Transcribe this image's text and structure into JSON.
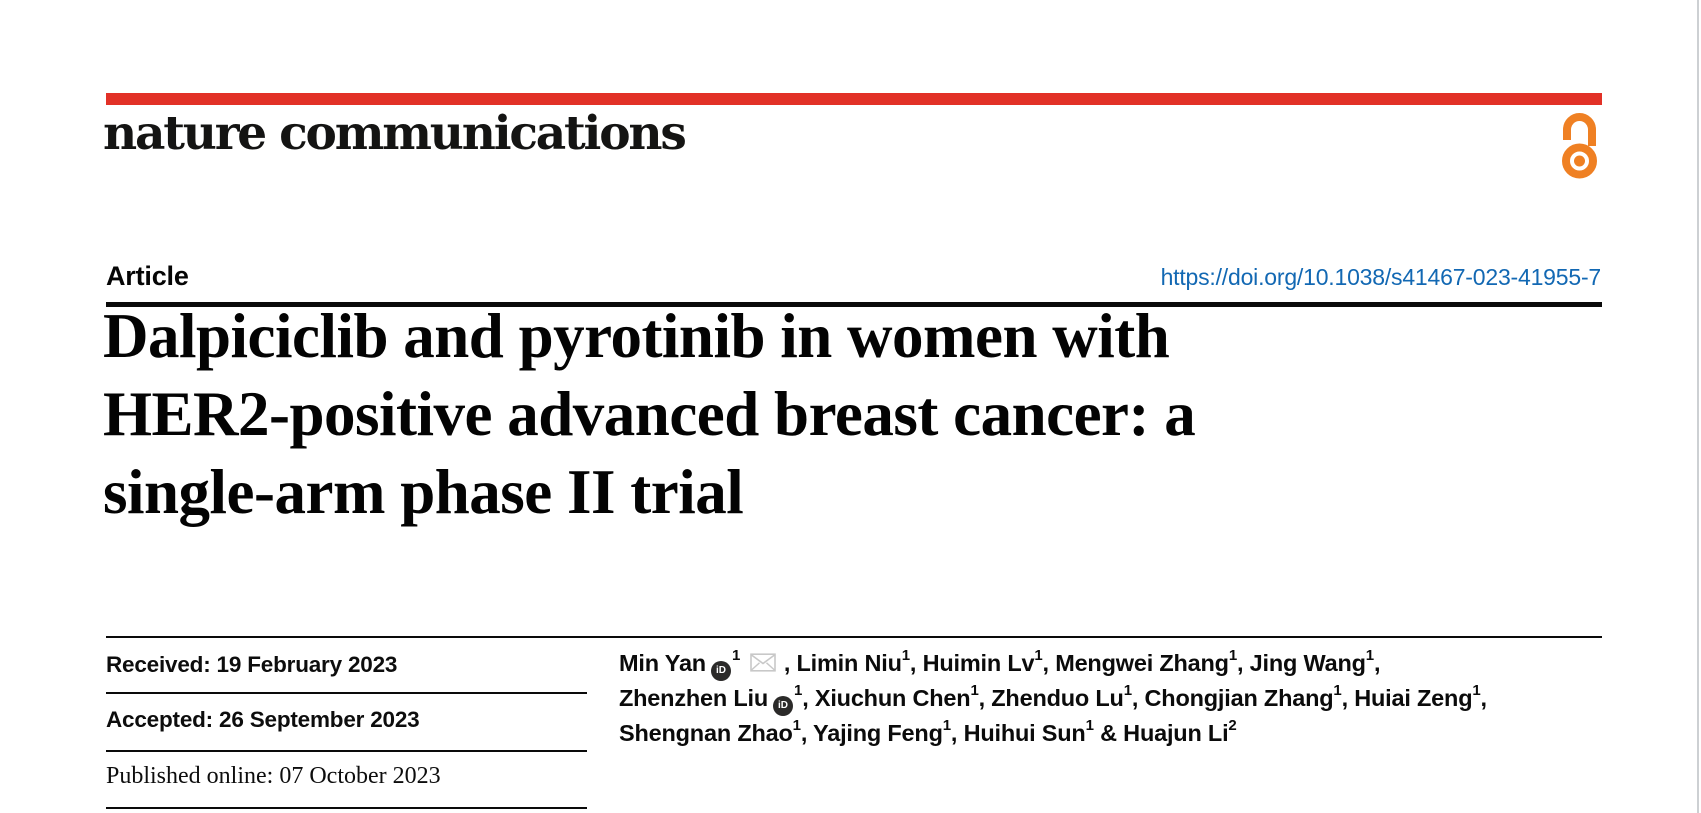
{
  "page": {
    "brand": "nature communications",
    "colors": {
      "accent_red": "#e23127",
      "oa_orange": "#ef8023",
      "link_blue": "#1268b3",
      "rule_black": "#0a0a0a",
      "page_edge_gray": "#cdd0d3",
      "envelope_gray": "#c8c8c8",
      "orcid_black": "#2b2a29"
    },
    "icons": [
      "open-access-padlock-icon",
      "orcid-id-icon",
      "envelope-icon"
    ]
  },
  "header": {
    "article_label": "Article",
    "doi": "https://doi.org/10.1038/s41467-023-41955-7"
  },
  "title": {
    "full": "Dalpiciclib and pyrotinib in women with HER2-positive advanced breast cancer: a single-arm phase II trial",
    "lines": [
      "Dalpiciclib and pyrotinib in women with",
      "HER2-positive advanced breast cancer: a",
      "single-arm phase II trial"
    ]
  },
  "dates": [
    {
      "label": "Received",
      "value": "19 February 2023",
      "text": "Received: 19 February 2023"
    },
    {
      "label": "Accepted",
      "value": "26 September 2023",
      "text": "Accepted: 26 September 2023"
    },
    {
      "label": "Published online",
      "value": "07 October 2023",
      "text": "Published online: 07 October 2023"
    }
  ],
  "authors": {
    "orcid_glyph": "iD",
    "names": [
      "Min Yan",
      "Limin Niu",
      "Huimin Lv",
      "Mengwei Zhang",
      "Jing Wang",
      "Zhenzhen Liu",
      "Xiuchun Chen",
      "Zhenduo Lu",
      "Chongjian Zhang",
      "Huiai Zeng",
      "Shengnan Zhao",
      "Yajing Feng",
      "Huihui Sun",
      "Huajun Li"
    ],
    "lines": [
      [
        {
          "t": "name",
          "v": "Min Yan"
        },
        {
          "t": "orcid"
        },
        {
          "t": "sup",
          "v": "1"
        },
        {
          "t": "mail"
        },
        {
          "t": "text",
          "v": ", "
        },
        {
          "t": "name",
          "v": "Limin Niu"
        },
        {
          "t": "sup",
          "v": "1"
        },
        {
          "t": "text",
          "v": ", "
        },
        {
          "t": "name",
          "v": "Huimin Lv"
        },
        {
          "t": "sup",
          "v": "1"
        },
        {
          "t": "text",
          "v": ", "
        },
        {
          "t": "name",
          "v": "Mengwei Zhang"
        },
        {
          "t": "sup",
          "v": "1"
        },
        {
          "t": "text",
          "v": ", "
        },
        {
          "t": "name",
          "v": "Jing Wang"
        },
        {
          "t": "sup",
          "v": "1"
        },
        {
          "t": "text",
          "v": ","
        }
      ],
      [
        {
          "t": "name",
          "v": "Zhenzhen Liu"
        },
        {
          "t": "orcid"
        },
        {
          "t": "sup",
          "v": "1"
        },
        {
          "t": "text",
          "v": ", "
        },
        {
          "t": "name",
          "v": "Xiuchun Chen"
        },
        {
          "t": "sup",
          "v": "1"
        },
        {
          "t": "text",
          "v": ", "
        },
        {
          "t": "name",
          "v": "Zhenduo Lu"
        },
        {
          "t": "sup",
          "v": "1"
        },
        {
          "t": "text",
          "v": ", "
        },
        {
          "t": "name",
          "v": "Chongjian Zhang"
        },
        {
          "t": "sup",
          "v": "1"
        },
        {
          "t": "text",
          "v": ", "
        },
        {
          "t": "name",
          "v": "Huiai Zeng"
        },
        {
          "t": "sup",
          "v": "1"
        },
        {
          "t": "text",
          "v": ","
        }
      ],
      [
        {
          "t": "name",
          "v": "Shengnan Zhao"
        },
        {
          "t": "sup",
          "v": "1"
        },
        {
          "t": "text",
          "v": ", "
        },
        {
          "t": "name",
          "v": "Yajing Feng"
        },
        {
          "t": "sup",
          "v": "1"
        },
        {
          "t": "text",
          "v": ", "
        },
        {
          "t": "name",
          "v": "Huihui Sun"
        },
        {
          "t": "sup",
          "v": "1"
        },
        {
          "t": "text",
          "v": " & "
        },
        {
          "t": "name",
          "v": "Huajun Li"
        },
        {
          "t": "sup",
          "v": "2"
        }
      ]
    ]
  }
}
